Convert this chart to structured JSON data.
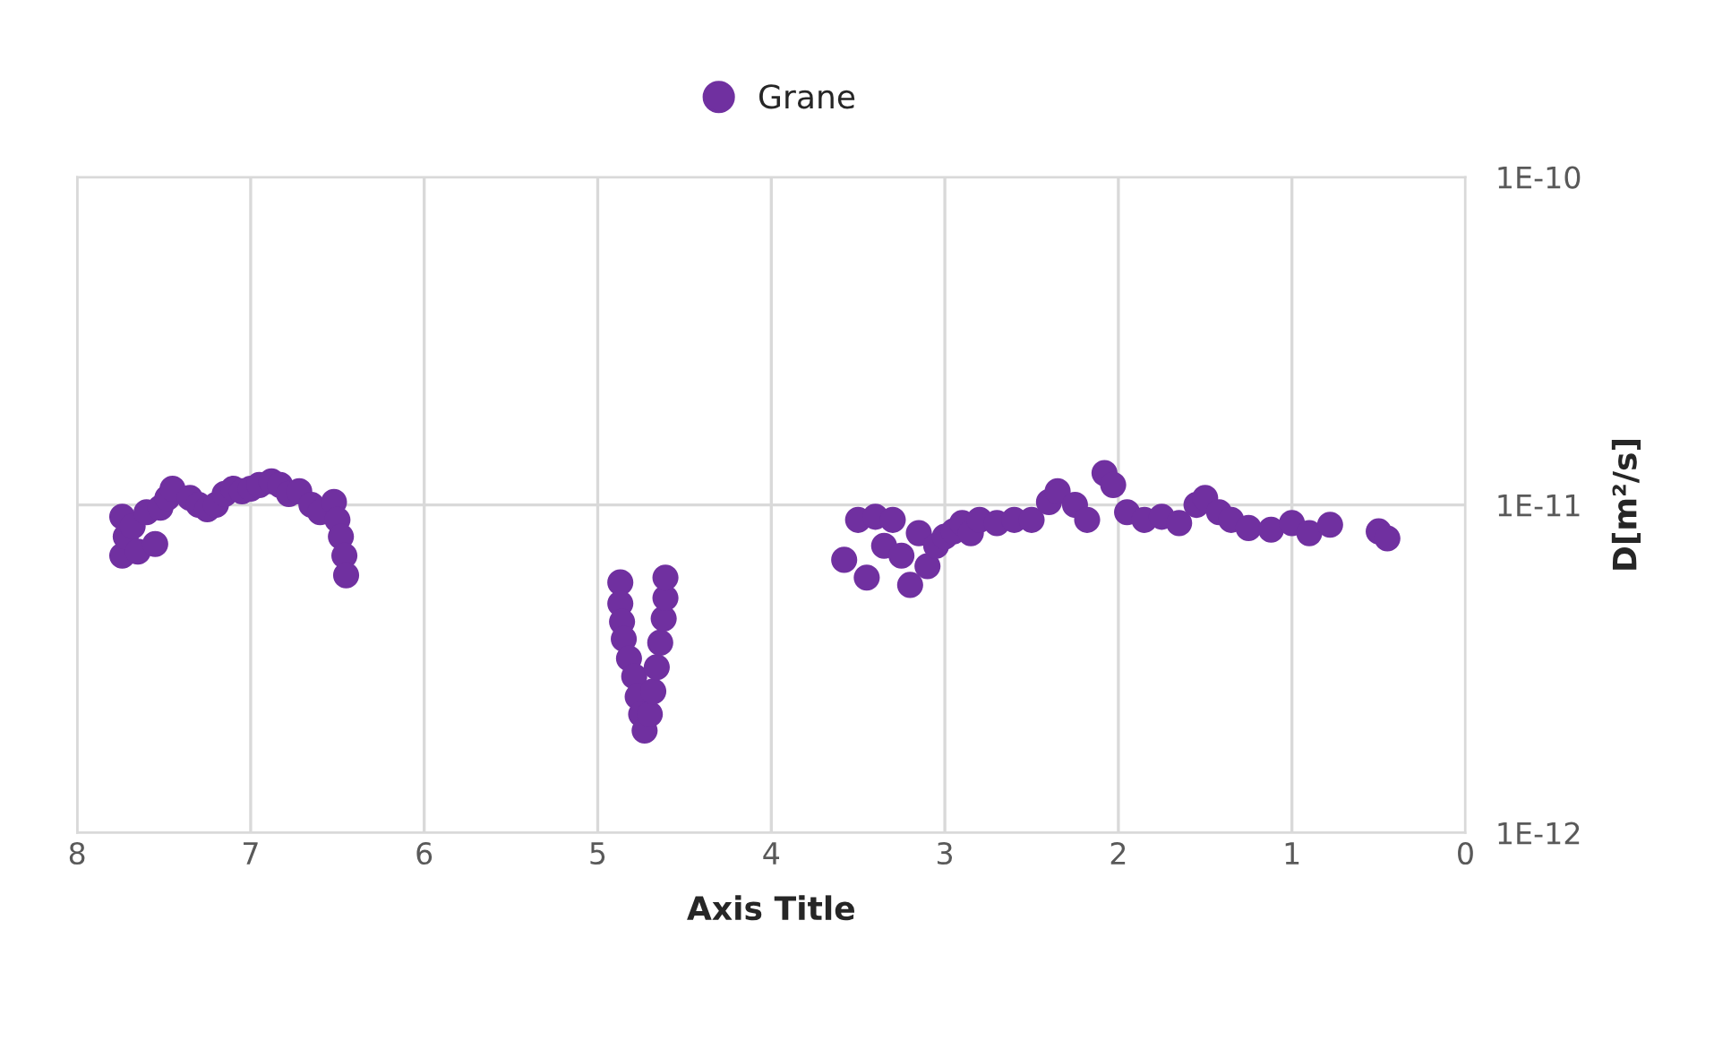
{
  "chart_data": {
    "type": "scatter",
    "xlabel": "Axis Title",
    "ylabel": "D[m²/s]",
    "log": "y",
    "grid": true,
    "legend": "top",
    "marker": "circle",
    "xlim": [
      8,
      0
    ],
    "xticks": [
      8,
      7,
      6,
      5,
      4,
      3,
      2,
      1,
      0
    ],
    "ylim": [
      1e-12,
      1e-10
    ],
    "yticks": [
      {
        "value": 1e-12,
        "label": "1E-12"
      },
      {
        "value": 1e-11,
        "label": "1E-11"
      },
      {
        "value": 1e-10,
        "label": "1E-10"
      }
    ],
    "series": [
      {
        "name": "Grane",
        "color": "#7030a0",
        "x": [
          7.74,
          7.74,
          7.72,
          7.68,
          7.65,
          7.6,
          7.55,
          7.52,
          7.48,
          7.45,
          7.35,
          7.3,
          7.25,
          7.2,
          7.15,
          7.1,
          7.05,
          7.0,
          6.95,
          6.88,
          6.83,
          6.78,
          6.72,
          6.65,
          6.6,
          6.52,
          6.5,
          6.48,
          6.46,
          6.45,
          4.87,
          4.87,
          4.86,
          4.85,
          4.82,
          4.79,
          4.77,
          4.75,
          4.73,
          4.7,
          4.68,
          4.66,
          4.64,
          4.62,
          4.61,
          4.61,
          3.58,
          3.5,
          3.45,
          3.4,
          3.35,
          3.3,
          3.25,
          3.2,
          3.15,
          3.1,
          3.05,
          3.0,
          2.95,
          2.9,
          2.85,
          2.8,
          2.7,
          2.6,
          2.5,
          2.4,
          2.35,
          2.25,
          2.18,
          2.08,
          2.03,
          1.95,
          1.85,
          1.75,
          1.65,
          1.55,
          1.5,
          1.42,
          1.35,
          1.25,
          1.12,
          1.0,
          0.9,
          0.78,
          0.5,
          0.45
        ],
        "values": [
          9.2e-12,
          7e-12,
          8e-12,
          8.6e-12,
          7.2e-12,
          9.5e-12,
          7.6e-12,
          9.8e-12,
          1.05e-11,
          1.12e-11,
          1.05e-11,
          1e-11,
          9.7e-12,
          1e-11,
          1.08e-11,
          1.12e-11,
          1.1e-11,
          1.12e-11,
          1.15e-11,
          1.18e-11,
          1.15e-11,
          1.08e-11,
          1.1e-11,
          1e-11,
          9.5e-12,
          1.02e-11,
          9e-12,
          8e-12,
          7e-12,
          6.1e-12,
          5.8e-12,
          5e-12,
          4.4e-12,
          3.9e-12,
          3.4e-12,
          3e-12,
          2.6e-12,
          2.3e-12,
          2.05e-12,
          2.3e-12,
          2.7e-12,
          3.2e-12,
          3.8e-12,
          4.5e-12,
          5.2e-12,
          6e-12,
          6.8e-12,
          9e-12,
          6e-12,
          9.2e-12,
          7.5e-12,
          9e-12,
          7e-12,
          5.7e-12,
          8.2e-12,
          6.5e-12,
          7.5e-12,
          8e-12,
          8.3e-12,
          8.8e-12,
          8.2e-12,
          9e-12,
          8.8e-12,
          9e-12,
          9e-12,
          1.02e-11,
          1.1e-11,
          1e-11,
          9e-12,
          1.25e-11,
          1.15e-11,
          9.5e-12,
          9e-12,
          9.2e-12,
          8.8e-12,
          1e-11,
          1.05e-11,
          9.5e-12,
          9e-12,
          8.5e-12,
          8.4e-12,
          8.8e-12,
          8.2e-12,
          8.7e-12,
          8.3e-12,
          7.9e-12
        ]
      }
    ]
  }
}
